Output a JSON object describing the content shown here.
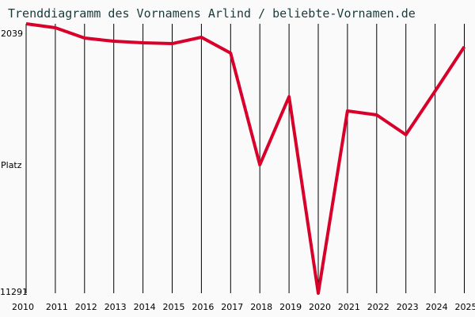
{
  "title": "Trenddiagramm des Vornamens Arlind / beliebte-Vornamen.de",
  "chart_data": {
    "type": "line",
    "title": "Trenddiagramm des Vornamens Arlind / beliebte-Vornamen.de",
    "xlabel": "",
    "ylabel": "Platz",
    "x": [
      2010,
      2011,
      2012,
      2013,
      2014,
      2015,
      2016,
      2017,
      2018,
      2019,
      2020,
      2021,
      2022,
      2023,
      2024,
      2025
    ],
    "series": [
      {
        "name": "Arlind",
        "color": "#d8002a",
        "values": [
          1700,
          1842,
          2208,
          2321,
          2377,
          2406,
          2180,
          2744,
          6720,
          4295,
          11291,
          4803,
          4944,
          5650,
          4097,
          2518
        ]
      }
    ],
    "y_tick_labels": [
      "2039",
      "11291"
    ],
    "y_inverted": true,
    "ylim": [
      1700,
      11291
    ],
    "grid": "vertical"
  }
}
